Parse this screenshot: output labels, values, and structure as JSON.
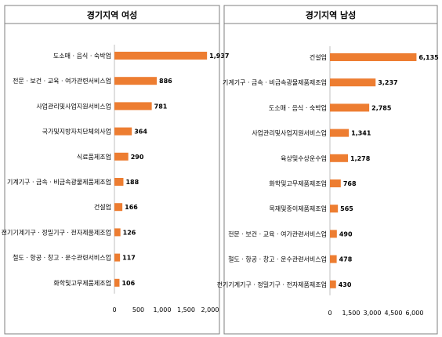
{
  "chart_data": [
    {
      "type": "bar",
      "orientation": "horizontal",
      "title": "경기지역 여성",
      "categories": [
        "도소매 · 음식 · 숙박업",
        "전문 · 보건 · 교육 · 여가관련서비스업",
        "사업관리및사업지원서비스업",
        "국가및지방자치단체의사업",
        "식료품제조업",
        "기계기구 · 금속 · 비금속광물제품제조업",
        "건설업",
        "전기기계기구 · 정밀기구 · 전자제품제조업",
        "철도 · 항공 · 창고 · 운수관련서비스업",
        "화학및고무제품제조업"
      ],
      "values": [
        1937,
        886,
        781,
        364,
        290,
        188,
        166,
        126,
        117,
        106
      ],
      "value_labels": [
        "1,937",
        "886",
        "781",
        "364",
        "290",
        "188",
        "166",
        "126",
        "117",
        "106"
      ],
      "xlim": [
        0,
        2000
      ],
      "ticks": [
        0,
        500,
        1000,
        1500,
        2000
      ],
      "tick_labels": [
        "0",
        "500",
        "1,000",
        "1,500",
        "2,000"
      ],
      "bar_color": "#ED7D31",
      "grid": false
    },
    {
      "type": "bar",
      "orientation": "horizontal",
      "title": "경기지역 남성",
      "categories": [
        "건설업",
        "기계기구 · 금속 · 비금속광물제품제조업",
        "도소매 · 음식 · 숙박업",
        "사업관리및사업지원서비스업",
        "육상및수상운수업",
        "화학및고무제품제조업",
        "목재및종이제품제조업",
        "전문 · 보건 · 교육 · 여가관련서비스업",
        "철도 · 항공 · 창고 · 운수관련서비스업",
        "전기기계기구 · 정밀기구 · 전자제품제조업"
      ],
      "values": [
        6135,
        3237,
        2785,
        1341,
        1278,
        768,
        565,
        490,
        478,
        430
      ],
      "value_labels": [
        "6,135",
        "3,237",
        "2,785",
        "1,341",
        "1,278",
        "768",
        "565",
        "490",
        "478",
        "430"
      ],
      "xlim": [
        0,
        6000
      ],
      "ticks": [
        0,
        1500,
        3000,
        4500,
        6000
      ],
      "tick_labels": [
        "0",
        "1,500",
        "3,000",
        "4,500",
        "6,000"
      ],
      "bar_color": "#ED7D31",
      "grid": false
    }
  ]
}
